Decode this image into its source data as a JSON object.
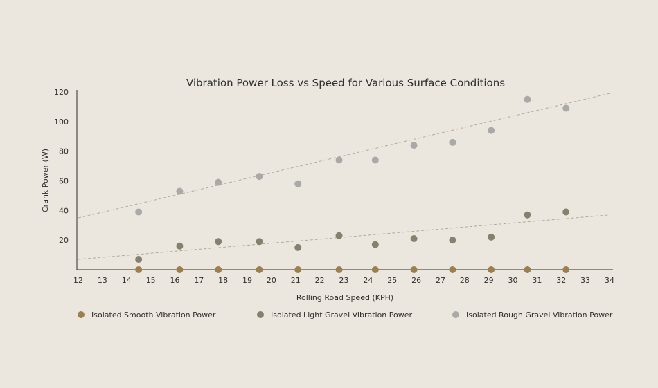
{
  "chart_data": {
    "type": "scatter",
    "title": "Vibration Power Loss vs Speed for Various Surface Conditions",
    "xlabel": "Rolling Road Speed (KPH)",
    "ylabel": "Crank Power (W)",
    "xlim": [
      12,
      34
    ],
    "ylim": [
      0,
      120
    ],
    "x_ticks": [
      12,
      13,
      14,
      15,
      16,
      17,
      18,
      19,
      20,
      21,
      22,
      23,
      24,
      25,
      26,
      27,
      28,
      29,
      30,
      31,
      32,
      33,
      34
    ],
    "y_ticks": [
      20,
      40,
      60,
      80,
      100,
      120
    ],
    "grid": false,
    "legend_position": "bottom",
    "series": [
      {
        "name": "Isolated Smooth Vibration Power",
        "color": "#9c7f4f",
        "points": [
          [
            14.5,
            0
          ],
          [
            16.2,
            0
          ],
          [
            17.8,
            0
          ],
          [
            19.5,
            0
          ],
          [
            21.1,
            0
          ],
          [
            22.8,
            0
          ],
          [
            24.3,
            0
          ],
          [
            25.9,
            0
          ],
          [
            27.5,
            0
          ],
          [
            29.1,
            0
          ],
          [
            30.6,
            0
          ],
          [
            32.2,
            0
          ]
        ]
      },
      {
        "name": "Isolated Light Gravel Vibration Power",
        "color": "#85816f",
        "points": [
          [
            14.5,
            7
          ],
          [
            16.2,
            16
          ],
          [
            17.8,
            19
          ],
          [
            19.5,
            19
          ],
          [
            21.1,
            15
          ],
          [
            22.8,
            23
          ],
          [
            24.3,
            17
          ],
          [
            25.9,
            21
          ],
          [
            27.5,
            20
          ],
          [
            29.1,
            22
          ],
          [
            30.6,
            37
          ],
          [
            32.2,
            39
          ]
        ],
        "trend": [
          [
            12,
            7
          ],
          [
            34,
            37
          ]
        ]
      },
      {
        "name": "Isolated Rough Gravel Vibration Power",
        "color": "#a9a9a7",
        "points": [
          [
            14.5,
            39
          ],
          [
            16.2,
            53
          ],
          [
            17.8,
            59
          ],
          [
            19.5,
            63
          ],
          [
            21.1,
            58
          ],
          [
            22.8,
            74
          ],
          [
            24.3,
            74
          ],
          [
            25.9,
            84
          ],
          [
            27.5,
            86
          ],
          [
            29.1,
            94
          ],
          [
            30.6,
            115
          ],
          [
            32.2,
            109
          ]
        ],
        "trend": [
          [
            12,
            35
          ],
          [
            34,
            119
          ]
        ]
      }
    ]
  }
}
